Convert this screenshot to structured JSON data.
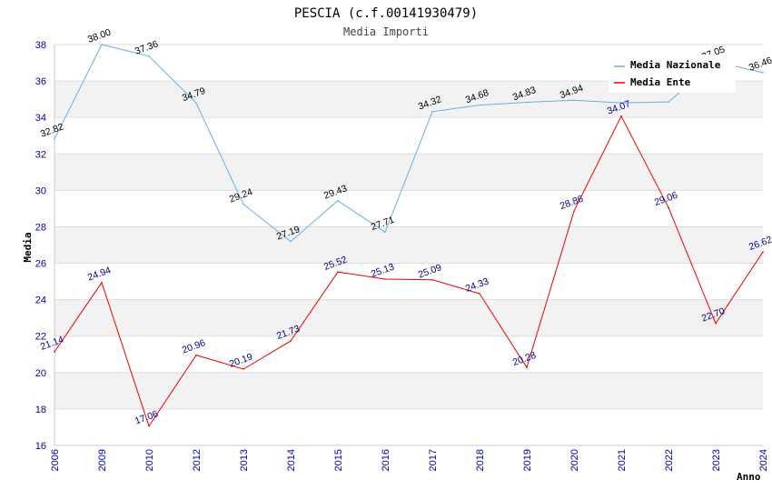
{
  "chart_data": {
    "type": "line",
    "title": "PESCIA (c.f.00141930479)",
    "subtitle": "Media Importi",
    "xlabel": "Anno",
    "ylabel": "Media",
    "ylim": [
      16,
      38
    ],
    "yticks": [
      "16",
      "18",
      "20",
      "22",
      "24",
      "26",
      "28",
      "30",
      "32",
      "34",
      "36",
      "38"
    ],
    "categories": [
      "2006",
      "2009",
      "2010",
      "2012",
      "2013",
      "2014",
      "2015",
      "2016",
      "2017",
      "2018",
      "2019",
      "2020",
      "2021",
      "2022",
      "2023",
      "2024"
    ],
    "grid": true,
    "legend_position": "top-right",
    "series": [
      {
        "name": "Media Nazionale",
        "color": "#6aaee8",
        "values": [
          32.82,
          38.0,
          37.36,
          34.79,
          29.24,
          27.19,
          29.43,
          27.71,
          34.32,
          34.68,
          34.83,
          34.94,
          34.8,
          34.85,
          37.05,
          36.46
        ],
        "labels": [
          "32.82",
          "38.00",
          "37.36",
          "34.79",
          "29.24",
          "27.19",
          "29.43",
          "27.71",
          "34.32",
          "34.68",
          "34.83",
          "34.94",
          "",
          "",
          "37.05",
          "36.46"
        ]
      },
      {
        "name": "Media Ente",
        "color": "#ee0000",
        "values": [
          21.14,
          24.94,
          17.06,
          20.96,
          20.19,
          21.73,
          25.52,
          25.13,
          25.09,
          24.33,
          20.28,
          28.86,
          34.07,
          29.06,
          22.7,
          26.62
        ],
        "labels": [
          "21.14",
          "24.94",
          "17.06",
          "20.96",
          "20.19",
          "21.73",
          "25.52",
          "25.13",
          "25.09",
          "24.33",
          "20.28",
          "28.86",
          "34.07",
          "29.06",
          "22.70",
          "26.62"
        ]
      }
    ]
  }
}
